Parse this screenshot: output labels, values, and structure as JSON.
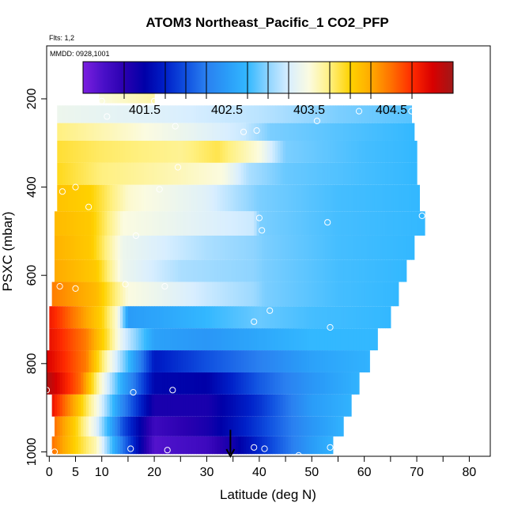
{
  "chart_data": {
    "type": "heatmap",
    "title": "ATOM3 Northeast_Pacific_1 CO2_PFP",
    "flights_note": "Flts: 1,2",
    "mmdd_note": "MMDD: 0928,1001",
    "xlabel": "Latitude (deg N)",
    "ylabel": "PSXC (mbar)",
    "xlim": [
      -0.5,
      84
    ],
    "ylim": [
      1010,
      80
    ],
    "x_ticks": [
      0,
      5,
      10,
      20,
      30,
      40,
      50,
      60,
      70,
      80
    ],
    "x_minor_ticks": [
      15,
      25,
      35,
      45,
      55,
      65,
      75
    ],
    "y_ticks": [
      200,
      400,
      600,
      800,
      1000
    ],
    "colorbar": {
      "min": 400.75,
      "max": 405.25,
      "tick_values": [
        401.5,
        402.5,
        403.5,
        404.5
      ],
      "tick_labels": [
        "401.5",
        "402.5",
        "403.5",
        "404.5"
      ],
      "boundaries": [
        401.25,
        401.75,
        402.0,
        402.25,
        402.75,
        403.0,
        403.25,
        403.75,
        404.0,
        404.25,
        404.75
      ],
      "color_stops": [
        [
          400.75,
          "#7b1fe0"
        ],
        [
          401.0,
          "#4a10c8"
        ],
        [
          401.25,
          "#2a00b0"
        ],
        [
          401.5,
          "#0000a8"
        ],
        [
          401.75,
          "#0020c8"
        ],
        [
          402.0,
          "#1050e0"
        ],
        [
          402.25,
          "#2a80f0"
        ],
        [
          402.5,
          "#2a9cf8"
        ],
        [
          402.75,
          "#33b8ff"
        ],
        [
          403.0,
          "#8ed4ff"
        ],
        [
          403.25,
          "#d8eeff"
        ],
        [
          403.5,
          "#fbfbe0"
        ],
        [
          403.75,
          "#fff080"
        ],
        [
          404.0,
          "#ffd200"
        ],
        [
          404.25,
          "#ffaa00"
        ],
        [
          404.5,
          "#ff7000"
        ],
        [
          404.75,
          "#ff2a00"
        ],
        [
          405.0,
          "#d80000"
        ],
        [
          405.25,
          "#a01818"
        ]
      ]
    },
    "bands": [
      {
        "p_top": 170,
        "p_bot": 210,
        "lat_min": 9.5,
        "lat_max": 20,
        "lat_knots": [
          9.5,
          20
        ],
        "val_knots": [
          403.5,
          403.65
        ]
      },
      {
        "p_top": 215,
        "p_bot": 255,
        "lat_min": 1.5,
        "lat_max": 69,
        "lat_knots": [
          1.5,
          20,
          40,
          55,
          69
        ],
        "val_knots": [
          403.4,
          403.3,
          403.15,
          402.95,
          402.85
        ]
      },
      {
        "p_top": 255,
        "p_bot": 295,
        "lat_min": 1.5,
        "lat_max": 69.5,
        "lat_knots": [
          1.5,
          15,
          28,
          37,
          42,
          55,
          69.5
        ],
        "val_knots": [
          403.75,
          403.55,
          403.35,
          403.2,
          402.95,
          402.85,
          402.75
        ]
      },
      {
        "p_top": 295,
        "p_bot": 345,
        "lat_min": 1.5,
        "lat_max": 70,
        "lat_knots": [
          1.5,
          10,
          25,
          32,
          40,
          45,
          60,
          70
        ],
        "val_knots": [
          403.9,
          403.8,
          403.7,
          403.85,
          403.5,
          402.95,
          402.8,
          402.75
        ]
      },
      {
        "p_top": 345,
        "p_bot": 395,
        "lat_min": 1.5,
        "lat_max": 70,
        "lat_knots": [
          1.5,
          10,
          25,
          33,
          38,
          45,
          60,
          70
        ],
        "val_knots": [
          403.95,
          403.75,
          403.6,
          403.5,
          403.1,
          402.9,
          402.8,
          402.75
        ]
      },
      {
        "p_top": 395,
        "p_bot": 455,
        "lat_min": 1.5,
        "lat_max": 70.5,
        "lat_knots": [
          1.5,
          8,
          15,
          30,
          40,
          55,
          70.5
        ],
        "val_knots": [
          404.1,
          404.0,
          403.55,
          403.3,
          402.95,
          402.8,
          402.75
        ]
      },
      {
        "p_top": 455,
        "p_bot": 510,
        "lat_min": 1,
        "lat_max": 71.5,
        "lat_knots": [
          1,
          8,
          14,
          30,
          39,
          40,
          55,
          71.5
        ],
        "val_knots": [
          404.15,
          404.05,
          403.5,
          403.3,
          403.2,
          402.95,
          402.8,
          402.75
        ]
      },
      {
        "p_top": 510,
        "p_bot": 565,
        "lat_min": 1,
        "lat_max": 69.5,
        "lat_knots": [
          1,
          8,
          14,
          30,
          39,
          41,
          55,
          69.5
        ],
        "val_knots": [
          404.2,
          404.05,
          403.4,
          403.1,
          403.0,
          402.95,
          402.8,
          402.75
        ]
      },
      {
        "p_top": 565,
        "p_bot": 615,
        "lat_min": 1,
        "lat_max": 68,
        "lat_knots": [
          1,
          9,
          14,
          25,
          39,
          41,
          55,
          68
        ],
        "val_knots": [
          404.25,
          404.05,
          403.4,
          403.1,
          403.0,
          402.95,
          402.8,
          402.75
        ]
      },
      {
        "p_top": 615,
        "p_bot": 670,
        "lat_min": 0.5,
        "lat_max": 66.5,
        "lat_knots": [
          0.5,
          9,
          15,
          30,
          39,
          41,
          55,
          66.5
        ],
        "val_knots": [
          404.45,
          404.15,
          403.5,
          403.2,
          403.05,
          402.95,
          402.8,
          402.75
        ]
      },
      {
        "p_top": 670,
        "p_bot": 720,
        "lat_min": 0,
        "lat_max": 65,
        "lat_knots": [
          0,
          6,
          10,
          13,
          15,
          22,
          30,
          40,
          50,
          65
        ],
        "val_knots": [
          404.85,
          404.35,
          404.0,
          403.5,
          402.5,
          402.6,
          402.75,
          402.9,
          402.8,
          402.75
        ]
      },
      {
        "p_top": 720,
        "p_bot": 770,
        "lat_min": 0,
        "lat_max": 62.5,
        "lat_knots": [
          0,
          7,
          11,
          14,
          20,
          30,
          40,
          50,
          62.5
        ],
        "val_knots": [
          404.9,
          404.45,
          403.9,
          403.3,
          402.55,
          402.45,
          402.6,
          402.75,
          402.75
        ]
      },
      {
        "p_top": 770,
        "p_bot": 820,
        "lat_min": -0.5,
        "lat_max": 61,
        "lat_knots": [
          -0.5,
          7,
          11,
          14,
          20,
          30,
          40,
          50,
          61
        ],
        "val_knots": [
          405.0,
          404.45,
          403.6,
          403.0,
          401.7,
          402.0,
          402.25,
          402.55,
          402.7
        ]
      },
      {
        "p_top": 820,
        "p_bot": 870,
        "lat_min": -0.5,
        "lat_max": 59,
        "lat_knots": [
          -0.5,
          6,
          10,
          14,
          20,
          30,
          40,
          50,
          59
        ],
        "val_knots": [
          405.2,
          404.5,
          403.5,
          402.6,
          401.55,
          401.5,
          402.05,
          402.45,
          402.7
        ]
      },
      {
        "p_top": 870,
        "p_bot": 920,
        "lat_min": 0.5,
        "lat_max": 57.5,
        "lat_knots": [
          0.5,
          5,
          9,
          14,
          20,
          30,
          40,
          50,
          57.5
        ],
        "val_knots": [
          404.9,
          404.2,
          403.5,
          402.3,
          401.35,
          401.35,
          401.85,
          402.5,
          402.7
        ]
      },
      {
        "p_top": 920,
        "p_bot": 965,
        "lat_min": 1,
        "lat_max": 56,
        "lat_knots": [
          1,
          5,
          9,
          14,
          20,
          30,
          40,
          50,
          56
        ],
        "val_knots": [
          404.5,
          404.0,
          403.3,
          402.0,
          401.1,
          401.35,
          401.9,
          402.45,
          402.7
        ]
      },
      {
        "p_top": 965,
        "p_bot": 1005,
        "lat_min": 0.5,
        "lat_max": 54,
        "lat_knots": [
          0.5,
          5,
          9,
          14,
          20,
          30,
          35,
          40,
          50,
          54
        ],
        "val_knots": [
          404.5,
          404.0,
          403.6,
          402.2,
          400.95,
          401.1,
          401.4,
          401.8,
          402.5,
          402.7
        ]
      }
    ],
    "sample_points": [
      [
        10,
        205
      ],
      [
        20,
        205
      ],
      [
        11,
        240
      ],
      [
        24,
        262
      ],
      [
        37,
        275
      ],
      [
        39.5,
        272
      ],
      [
        51,
        250
      ],
      [
        59,
        228
      ],
      [
        69,
        228
      ],
      [
        5,
        400
      ],
      [
        2.5,
        410
      ],
      [
        7.5,
        445
      ],
      [
        21,
        405
      ],
      [
        24.5,
        355
      ],
      [
        40,
        470
      ],
      [
        40.5,
        498
      ],
      [
        53,
        480
      ],
      [
        71,
        465
      ],
      [
        -0.5,
        510
      ],
      [
        16.5,
        510
      ],
      [
        2,
        625
      ],
      [
        5,
        630
      ],
      [
        14.5,
        620
      ],
      [
        22,
        625
      ],
      [
        39,
        705
      ],
      [
        42,
        680
      ],
      [
        53.5,
        718
      ],
      [
        -0.5,
        860
      ],
      [
        16,
        865
      ],
      [
        23.5,
        860
      ],
      [
        1,
        1000
      ],
      [
        15.5,
        993
      ],
      [
        22.5,
        996
      ],
      [
        39,
        990
      ],
      [
        41,
        993
      ],
      [
        47.5,
        1008
      ],
      [
        53.5,
        990
      ]
    ],
    "arrow": {
      "lat": 34.5,
      "p_from": 950,
      "p_to": 1010
    }
  }
}
